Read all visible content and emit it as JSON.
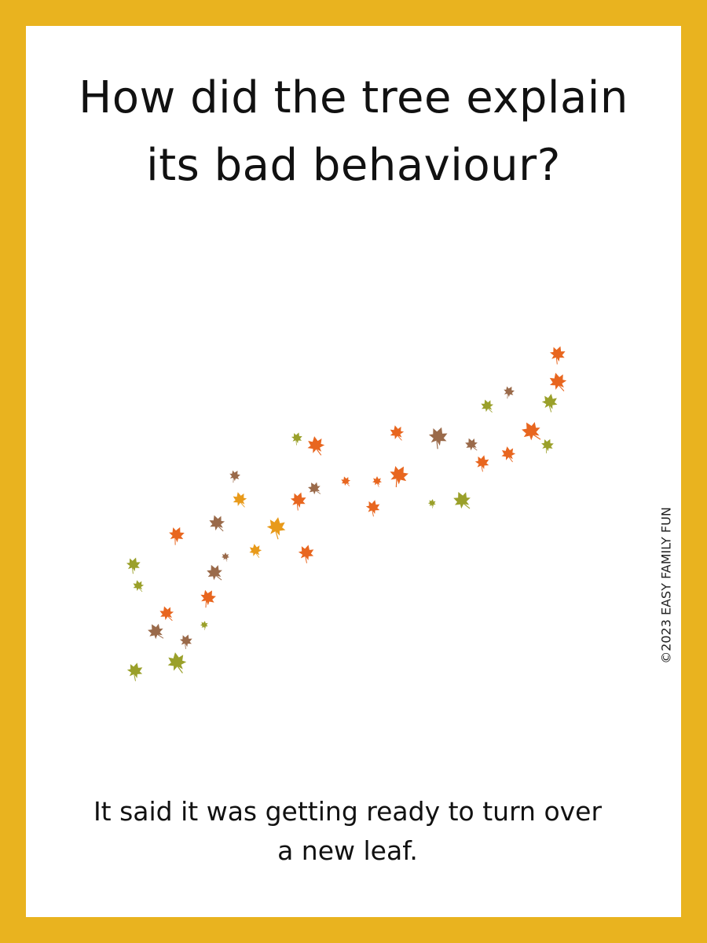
{
  "question": [
    "How did the tree explain",
    "its bad behaviour?"
  ],
  "answer": [
    "It said it was getting ready to turn over",
    "a new leaf."
  ],
  "copyright": "©2023 EASY FAMILY FUN"
}
